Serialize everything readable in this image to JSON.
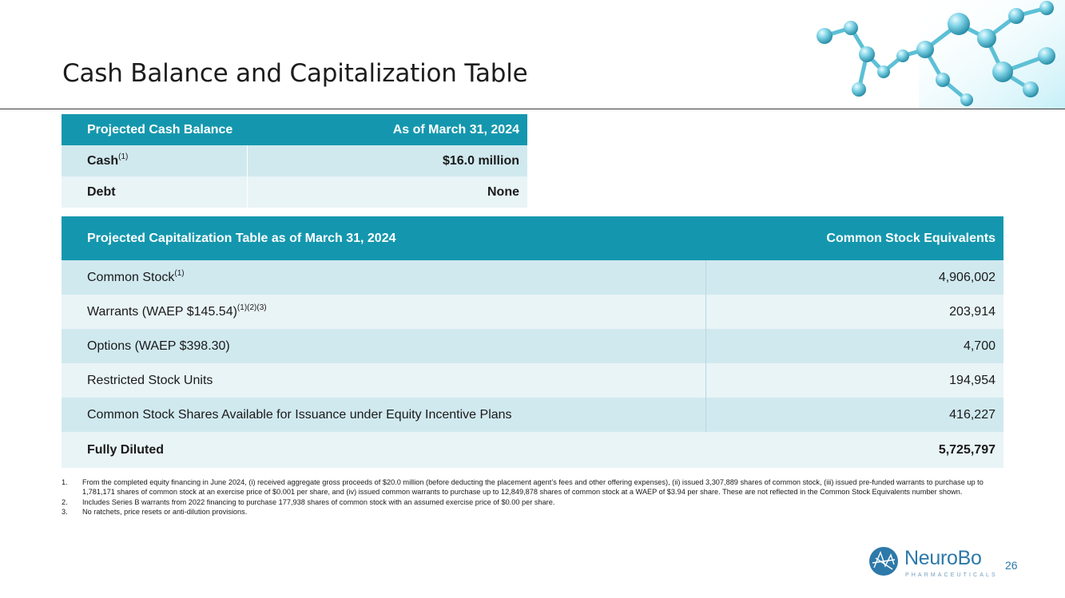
{
  "slide": {
    "title": "Cash Balance and Capitalization Table",
    "page_number": "26"
  },
  "cash_table": {
    "header": [
      "Projected Cash Balance",
      "As of March 31, 2024"
    ],
    "rows": [
      {
        "label": "Cash",
        "sup": "(1)",
        "value": "$16.0 million"
      },
      {
        "label": "Debt",
        "sup": "",
        "value": "None"
      }
    ]
  },
  "cap_table": {
    "header": [
      "Projected Capitalization Table as of March 31, 2024",
      "Common Stock Equivalents"
    ],
    "rows": [
      {
        "label": "Common Stock",
        "sup": "(1)",
        "value": "4,906,002"
      },
      {
        "label": "Warrants (WAEP $145.54)",
        "sup": "(1)(2)(3)",
        "value": "203,914"
      },
      {
        "label": "Options (WAEP $398.30)",
        "sup": "",
        "value": "4,700"
      },
      {
        "label": "Restricted Stock Units",
        "sup": "",
        "value": "194,954"
      },
      {
        "label": "Common Stock Shares Available for Issuance under Equity Incentive Plans",
        "sup": "",
        "value": "416,227"
      },
      {
        "label": "Fully Diluted",
        "sup": "",
        "value": "5,725,797"
      }
    ]
  },
  "footnotes": [
    {
      "num": "1.",
      "text": "From the completed equity financing in June 2024, (i) received aggregate gross proceeds of $20.0 million (before deducting the placement agent’s fees and other offering expenses), (ii) issued 3,307,889 shares of common stock, (iii) issued pre-funded warrants to purchase up to 1,781,171 shares of common stock at  an exercise price of $0.001 per share, and (iv) issued common warrants to purchase up to 12,849,878 shares of common stock at a WAEP of $3.94 per share.  These are not reflected in the Common Stock Equivalents number shown."
    },
    {
      "num": "2.",
      "text": "Includes Series B warrants from 2022 financing to purchase 177,938 shares of common stock with an assumed exercise price of $0.00 per share."
    },
    {
      "num": "3.",
      "text": "No ratchets, price resets or anti-dilution provisions."
    }
  ],
  "logo": {
    "name": "NeuroBo",
    "sub": "PHARMACEUTICALS"
  },
  "colors": {
    "header": "#1497ae",
    "row_dark": "#d0e9ef",
    "row_light": "#e9f4f7",
    "brand": "#2d79a9"
  },
  "decoration": {
    "molecule": "molecule-graphic"
  }
}
